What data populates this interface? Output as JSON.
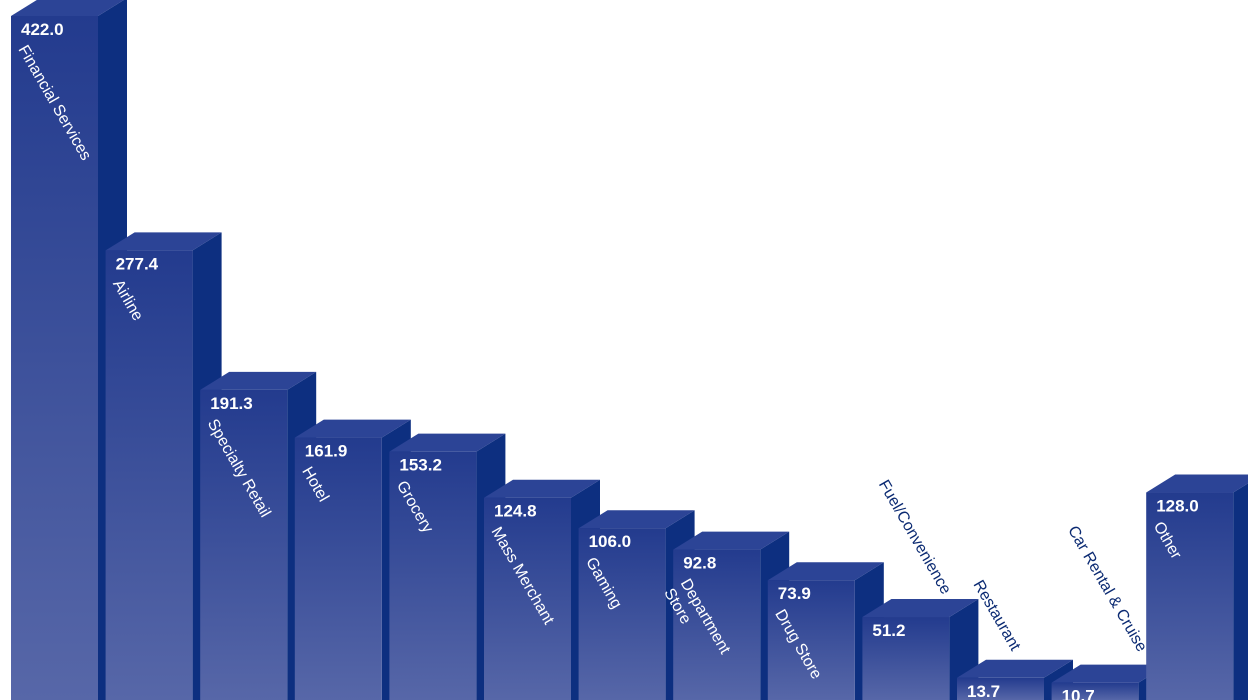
{
  "chart_data": {
    "type": "bar",
    "title": "",
    "xlabel": "",
    "ylabel": "",
    "ylim": [
      0,
      422
    ],
    "grid": false,
    "legend": "none",
    "style": "3d-extruded",
    "colors": {
      "front_top": "#243d8f",
      "front_bottom": "#5566a6",
      "side": "#0d2f80",
      "top": "#2c4496",
      "title_accent": "#c3162b"
    },
    "categories": [
      "Financial Services",
      "Airline",
      "Specialty Retail",
      "Hotel",
      "Grocery",
      "Mass Merchant",
      "Gaming",
      "Department Store",
      "Drug Store",
      "Fuel/Convenience",
      "Restaurant",
      "Car Rental & Cruise",
      "Other"
    ],
    "values": [
      422.0,
      277.4,
      191.3,
      161.9,
      153.2,
      124.8,
      106.0,
      92.8,
      73.9,
      51.2,
      13.7,
      10.7,
      128.0
    ],
    "value_labels": [
      "422.0",
      "277.4",
      "191.3",
      "161.9",
      "153.2",
      "124.8",
      "106.0",
      "92.8",
      "73.9",
      "51.2",
      "13.7",
      "10.7",
      "128.0"
    ],
    "label_lines": [
      [
        "Financial Services"
      ],
      [
        "Airline"
      ],
      [
        "Specialty Retail"
      ],
      [
        "Hotel"
      ],
      [
        "Grocery"
      ],
      [
        "Mass Merchant"
      ],
      [
        "Gaming"
      ],
      [
        "Department",
        "Store"
      ],
      [
        "Drug Store"
      ],
      [
        "Fuel/Convenience"
      ],
      [
        "Restaurant"
      ],
      [
        "Car Rental & Cruise"
      ],
      [
        "Other"
      ]
    ]
  }
}
